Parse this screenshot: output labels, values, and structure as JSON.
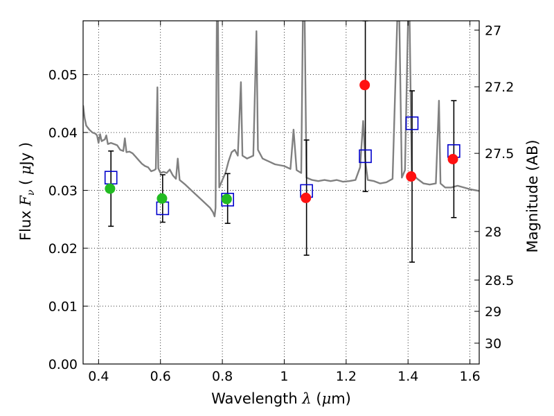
{
  "chart_data": {
    "type": "scatter",
    "xlabel_parts": [
      "Wavelength  ",
      "λ",
      " (",
      "μ",
      "m)"
    ],
    "ylabel_parts": [
      "Flux  ",
      "F",
      "ν",
      "  ( ",
      "μ",
      "Jy )"
    ],
    "y2label": "Magnitude (AB)",
    "xlim": [
      0.35,
      1.63
    ],
    "ylim": [
      0.0,
      0.0593
    ],
    "grid": true,
    "xticks": [
      0.4,
      0.6,
      0.8,
      1.0,
      1.2,
      1.4,
      1.6
    ],
    "xtick_labels": [
      "0.4",
      "0.6",
      "0.8",
      "1",
      "1.2",
      "1.4",
      "1.6"
    ],
    "yticks": [
      0.0,
      0.01,
      0.02,
      0.03,
      0.04,
      0.05
    ],
    "ytick_labels": [
      "0.00",
      "0.01",
      "0.02",
      "0.03",
      "0.04",
      "0.05"
    ],
    "y2ticks": [
      {
        "label": "27",
        "flux": 0.0577
      },
      {
        "label": "27.2",
        "flux": 0.0479
      },
      {
        "label": "27.5",
        "flux": 0.0364
      },
      {
        "label": "28",
        "flux": 0.0229
      },
      {
        "label": "28.5",
        "flux": 0.0145
      },
      {
        "label": "29",
        "flux": 0.0091
      },
      {
        "label": "30",
        "flux": 0.0036
      }
    ],
    "colors": {
      "model": "#808080",
      "square": "#0000cc",
      "green": "#22bb22",
      "red": "#ff1111",
      "errorbar": "#000000"
    },
    "model_spectrum": [
      [
        0.35,
        0.0447
      ],
      [
        0.355,
        0.0425
      ],
      [
        0.36,
        0.0412
      ],
      [
        0.37,
        0.0405
      ],
      [
        0.38,
        0.04
      ],
      [
        0.39,
        0.0398
      ],
      [
        0.395,
        0.0395
      ],
      [
        0.4,
        0.0382
      ],
      [
        0.405,
        0.0397
      ],
      [
        0.41,
        0.0385
      ],
      [
        0.42,
        0.0388
      ],
      [
        0.425,
        0.0395
      ],
      [
        0.43,
        0.038
      ],
      [
        0.44,
        0.0382
      ],
      [
        0.45,
        0.038
      ],
      [
        0.46,
        0.0378
      ],
      [
        0.47,
        0.037
      ],
      [
        0.48,
        0.0368
      ],
      [
        0.485,
        0.039
      ],
      [
        0.49,
        0.0366
      ],
      [
        0.5,
        0.0367
      ],
      [
        0.51,
        0.0364
      ],
      [
        0.52,
        0.0358
      ],
      [
        0.53,
        0.0352
      ],
      [
        0.54,
        0.0346
      ],
      [
        0.55,
        0.0342
      ],
      [
        0.56,
        0.034
      ],
      [
        0.57,
        0.0333
      ],
      [
        0.58,
        0.0335
      ],
      [
        0.585,
        0.0337
      ],
      [
        0.59,
        0.0478
      ],
      [
        0.593,
        0.0338
      ],
      [
        0.6,
        0.033
      ],
      [
        0.61,
        0.0332
      ],
      [
        0.62,
        0.033
      ],
      [
        0.63,
        0.0336
      ],
      [
        0.64,
        0.0326
      ],
      [
        0.65,
        0.032
      ],
      [
        0.656,
        0.0355
      ],
      [
        0.662,
        0.0318
      ],
      [
        0.68,
        0.031
      ],
      [
        0.7,
        0.03
      ],
      [
        0.72,
        0.029
      ],
      [
        0.74,
        0.028
      ],
      [
        0.76,
        0.027
      ],
      [
        0.77,
        0.0262
      ],
      [
        0.775,
        0.0255
      ],
      [
        0.778,
        0.027
      ],
      [
        0.782,
        0.0593
      ],
      [
        0.786,
        0.0593
      ],
      [
        0.79,
        0.0305
      ],
      [
        0.8,
        0.0318
      ],
      [
        0.81,
        0.033
      ],
      [
        0.82,
        0.035
      ],
      [
        0.83,
        0.0366
      ],
      [
        0.84,
        0.037
      ],
      [
        0.85,
        0.036
      ],
      [
        0.86,
        0.0487
      ],
      [
        0.865,
        0.036
      ],
      [
        0.88,
        0.0355
      ],
      [
        0.9,
        0.036
      ],
      [
        0.91,
        0.0575
      ],
      [
        0.915,
        0.037
      ],
      [
        0.93,
        0.0355
      ],
      [
        0.95,
        0.035
      ],
      [
        0.97,
        0.0345
      ],
      [
        1.0,
        0.0342
      ],
      [
        1.02,
        0.0337
      ],
      [
        1.03,
        0.0405
      ],
      [
        1.04,
        0.0335
      ],
      [
        1.055,
        0.033
      ],
      [
        1.06,
        0.0593
      ],
      [
        1.066,
        0.0593
      ],
      [
        1.072,
        0.0322
      ],
      [
        1.09,
        0.0318
      ],
      [
        1.11,
        0.0316
      ],
      [
        1.13,
        0.0318
      ],
      [
        1.15,
        0.0316
      ],
      [
        1.17,
        0.0318
      ],
      [
        1.19,
        0.0315
      ],
      [
        1.21,
        0.0316
      ],
      [
        1.23,
        0.0318
      ],
      [
        1.245,
        0.034
      ],
      [
        1.255,
        0.042
      ],
      [
        1.262,
        0.035
      ],
      [
        1.27,
        0.0318
      ],
      [
        1.29,
        0.0316
      ],
      [
        1.31,
        0.0312
      ],
      [
        1.33,
        0.0314
      ],
      [
        1.35,
        0.032
      ],
      [
        1.365,
        0.0593
      ],
      [
        1.372,
        0.0593
      ],
      [
        1.38,
        0.0322
      ],
      [
        1.39,
        0.0335
      ],
      [
        1.4,
        0.0593
      ],
      [
        1.405,
        0.0593
      ],
      [
        1.412,
        0.033
      ],
      [
        1.43,
        0.032
      ],
      [
        1.45,
        0.0312
      ],
      [
        1.47,
        0.031
      ],
      [
        1.49,
        0.0312
      ],
      [
        1.5,
        0.0455
      ],
      [
        1.505,
        0.0312
      ],
      [
        1.52,
        0.0305
      ],
      [
        1.54,
        0.0305
      ],
      [
        1.56,
        0.0308
      ],
      [
        1.58,
        0.0305
      ],
      [
        1.6,
        0.0302
      ],
      [
        1.63,
        0.0299
      ]
    ],
    "series": [
      {
        "marker": "square",
        "points": [
          [
            0.44,
            0.0322
          ],
          [
            0.607,
            0.0269
          ],
          [
            0.817,
            0.0284
          ],
          [
            1.072,
            0.0299
          ],
          [
            1.262,
            0.0359
          ],
          [
            1.413,
            0.0416
          ],
          [
            1.548,
            0.0368
          ]
        ]
      },
      {
        "marker": "green",
        "points": [
          [
            0.437,
            0.0303
          ],
          [
            0.605,
            0.0286
          ],
          [
            0.814,
            0.0285
          ]
        ]
      },
      {
        "marker": "red",
        "points": [
          [
            1.07,
            0.0287
          ],
          [
            1.26,
            0.0482
          ],
          [
            1.41,
            0.0324
          ],
          [
            1.545,
            0.0354
          ]
        ]
      }
    ],
    "errorbars": [
      {
        "x": 0.44,
        "low": 0.0238,
        "high": 0.0368
      },
      {
        "x": 0.607,
        "low": 0.0245,
        "high": 0.0327
      },
      {
        "x": 0.817,
        "low": 0.0243,
        "high": 0.0329
      },
      {
        "x": 1.072,
        "low": 0.0188,
        "high": 0.0387
      },
      {
        "x": 1.262,
        "low": 0.0298,
        "high": 0.0593
      },
      {
        "x": 1.413,
        "low": 0.0176,
        "high": 0.0472
      },
      {
        "x": 1.548,
        "low": 0.0253,
        "high": 0.0455
      }
    ]
  }
}
